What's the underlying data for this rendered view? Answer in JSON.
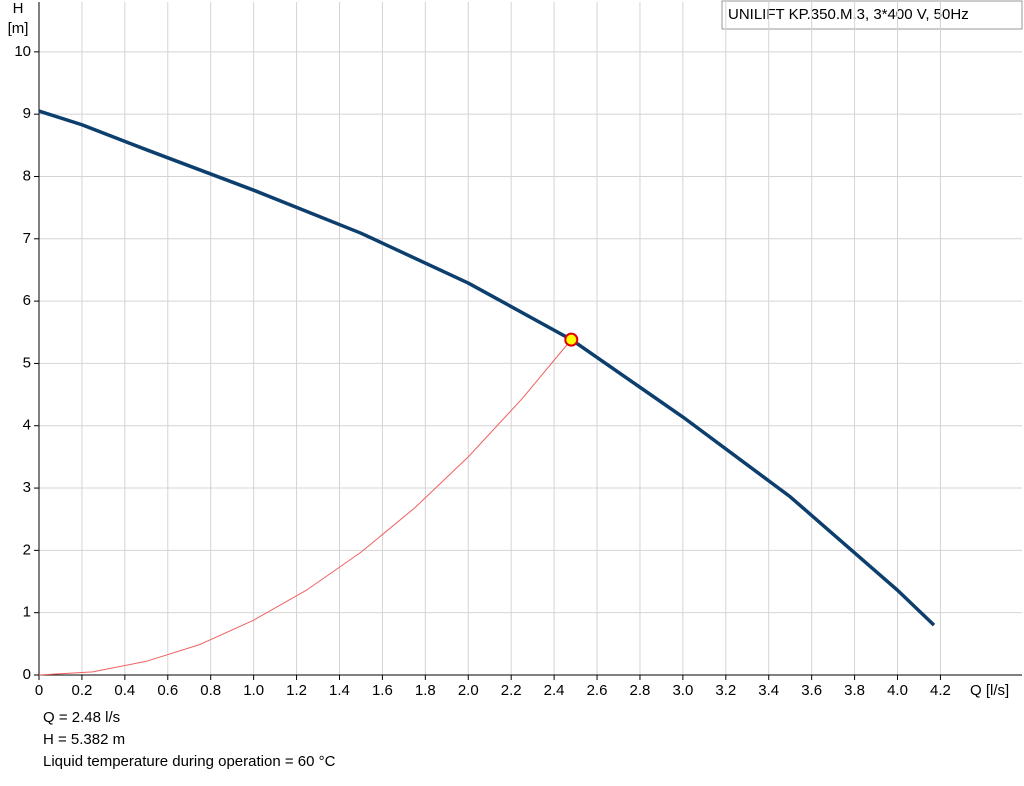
{
  "chart_data": {
    "type": "line",
    "title": "UNILIFT KP.350.M.3, 3*400 V, 50Hz",
    "y_label_lines": [
      "H",
      "[m]"
    ],
    "x_label": "Q [l/s]",
    "xlim": [
      0,
      4.58
    ],
    "ylim": [
      0,
      10.8
    ],
    "xticks": [
      0,
      0.2,
      0.4,
      0.6,
      0.8,
      {
        "value": 1,
        "label": "1.0"
      },
      1.2,
      1.4,
      1.6,
      1.8,
      {
        "value": 2,
        "label": "2.0"
      },
      2.2,
      2.4,
      2.6,
      2.8,
      {
        "value": 3,
        "label": "3.0"
      },
      3.2,
      3.4,
      3.6,
      3.8,
      {
        "value": 4,
        "label": "4.0"
      },
      4.2
    ],
    "yticks": [
      0,
      1,
      2,
      3,
      4,
      5,
      6,
      7,
      8,
      9,
      10
    ],
    "grid": true,
    "series": [
      {
        "color": "#0d3f6e",
        "width": 3.5,
        "x": [
          0,
          0.2,
          0.5,
          1.0,
          1.5,
          2.0,
          2.48,
          3.0,
          3.5,
          4.0,
          4.17
        ],
        "values": [
          9.05,
          8.83,
          8.43,
          7.78,
          7.09,
          6.29,
          5.382,
          4.14,
          2.86,
          1.36,
          0.8
        ]
      },
      {
        "color": "#f06060",
        "width": 1,
        "x": [
          0,
          0.25,
          0.5,
          0.75,
          1.0,
          1.25,
          1.5,
          1.75,
          2.0,
          2.25,
          2.48
        ],
        "values": [
          0,
          0.05,
          0.22,
          0.49,
          0.88,
          1.37,
          1.97,
          2.68,
          3.5,
          4.43,
          5.382
        ]
      }
    ],
    "point": {
      "x": 2.48,
      "y": 5.382,
      "color": "#ffff00",
      "stroke": "#e00000"
    },
    "info": [
      "Q = 2.48 l/s",
      "H = 5.382 m",
      "Liquid temperature during operation = 60 °C"
    ]
  }
}
